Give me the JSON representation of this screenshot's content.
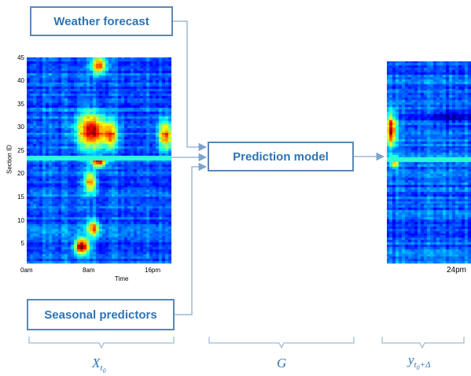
{
  "boxes": {
    "weather_forecast": "Weather forecast",
    "prediction_model": "Prediction model",
    "seasonal_predictors": "Seasonal predictors"
  },
  "left_heatmap": {
    "ylabel": "Section ID",
    "yticks": [
      "45",
      "40",
      "35",
      "30",
      "25",
      "20",
      "15",
      "10",
      "5"
    ],
    "xticks": [
      "0am",
      "8am",
      "16pm"
    ],
    "xlabel": "Time"
  },
  "right_heatmap": {
    "xtick": "24pm"
  },
  "brace_labels": {
    "input": {
      "base": "X",
      "sub": "t",
      "subsub": "0"
    },
    "model": "G",
    "output": {
      "base": "y",
      "sub": "t",
      "subsub": "0",
      "suffix": "+Δ"
    }
  },
  "colors": {
    "box_border": "#5b87b5",
    "box_text": "#2e74b5",
    "connector": "#9db8d6",
    "brace": "#9db8d6"
  }
}
